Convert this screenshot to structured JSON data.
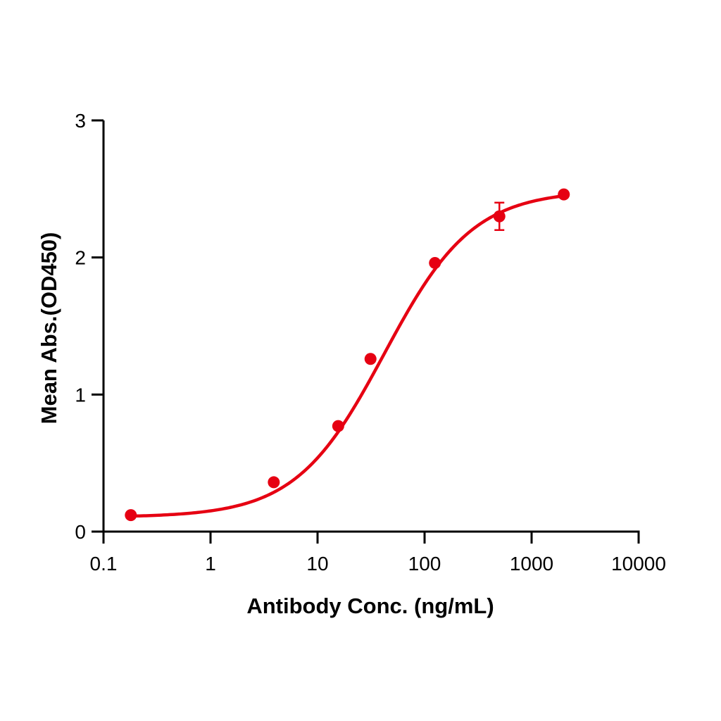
{
  "chart_data": {
    "type": "scatter",
    "title": "",
    "xlabel": "Antibody Conc. (ng/mL)",
    "ylabel": "Mean Abs.(OD450)",
    "xscale": "log",
    "xlim": [
      0.1,
      10000
    ],
    "ylim": [
      0,
      3
    ],
    "x_ticks": [
      "0.1",
      "1",
      "10",
      "100",
      "1000",
      "10000"
    ],
    "y_ticks": [
      "0",
      "1",
      "2",
      "3"
    ],
    "grid": false,
    "legend": null,
    "fit": "4-parameter logistic curve",
    "color": "#e60012",
    "series": [
      {
        "name": "Mean Abs.",
        "x": [
          0.18,
          3.9,
          15.6,
          31.25,
          125,
          500,
          2000
        ],
        "y": [
          0.12,
          0.36,
          0.77,
          1.26,
          1.96,
          2.3,
          2.46
        ],
        "error": [
          0,
          0,
          0,
          0,
          0,
          0.1,
          0
        ]
      }
    ]
  }
}
